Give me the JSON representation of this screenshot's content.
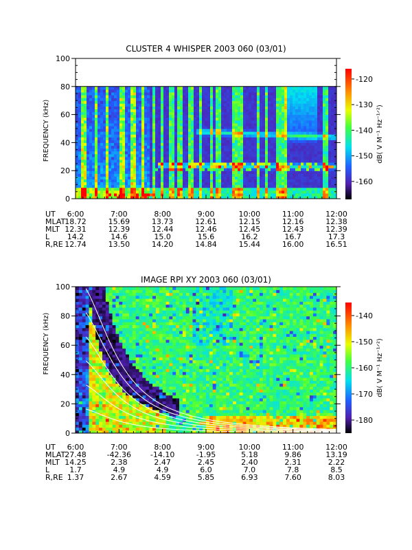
{
  "chart_data": [
    {
      "type": "heatmap",
      "title": "CLUSTER 4 WHISPER 2003 060 (03/01)",
      "ylabel": "FREQUENCY (kHz)",
      "ylim": [
        0,
        100
      ],
      "yticks": [
        "0",
        "20",
        "40",
        "60",
        "80",
        "100"
      ],
      "xlim": [
        "6:00",
        "12:00"
      ],
      "data_top_khz": 80,
      "colorbar": {
        "label": "dB( V M⁻¹ Hz⁻¹ᐟ²)",
        "ticks": [
          "-120",
          "-130",
          "-140",
          "-150",
          "-160"
        ],
        "range": [
          -167,
          -116
        ]
      },
      "ephemeris": {
        "rows": [
          {
            "name": "UT",
            "values": [
              "6:00",
              "7:00",
              "8:00",
              "9:00",
              "10:00",
              "11:00",
              "12:00"
            ]
          },
          {
            "name": "MLAT",
            "values": [
              "18.72",
              "15.69",
              "13.73",
              "12.61",
              "12.15",
              "12.16",
              "12.38"
            ]
          },
          {
            "name": "MLT",
            "values": [
              "12.31",
              "12.39",
              "12.44",
              "12.46",
              "12.45",
              "12.43",
              "12.39"
            ]
          },
          {
            "name": "L",
            "values": [
              "14.2",
              "14.6",
              "15.0",
              "15.6",
              "16.2",
              "16.7",
              "17.3"
            ]
          },
          {
            "name": "R,RE",
            "values": [
              "12.74",
              "13.50",
              "14.20",
              "14.84",
              "15.44",
              "16.00",
              "16.51"
            ]
          }
        ]
      },
      "emission_bands_khz": [
        {
          "name": "upper band",
          "start_hour": 8.8,
          "end_hour": 12.0,
          "freq": [
            48,
            44
          ]
        },
        {
          "name": "lower band",
          "start_hour": 7.9,
          "end_hour": 12.0,
          "freq": [
            24,
            23
          ]
        }
      ],
      "colors": {
        "background": "#3a2aa0",
        "band": "#30c8e8",
        "hot": "#ff3010"
      }
    },
    {
      "type": "heatmap",
      "title": "IMAGE RPI XY 2003 060 (03/01)",
      "ylabel": "FREQUENCY (kHz)",
      "ylim": [
        0,
        100
      ],
      "yticks": [
        "0",
        "20",
        "40",
        "60",
        "80",
        "100"
      ],
      "xlim": [
        "6:00",
        "12:00"
      ],
      "colorbar": {
        "label": "dB( V M⁻¹ Hz⁻¹ᐟ²)",
        "ticks": [
          "-140",
          "-150",
          "-160",
          "-170",
          "-180"
        ],
        "range": [
          -185,
          -135
        ]
      },
      "ephemeris": {
        "rows": [
          {
            "name": "UT",
            "values": [
              "6:00",
              "7:00",
              "8:00",
              "9:00",
              "10:00",
              "11:00",
              "12:00"
            ]
          },
          {
            "name": "MLAT",
            "values": [
              "27.48",
              "-42.36",
              "-14.10",
              "-1.95",
              "5.18",
              "9.86",
              "13.19"
            ]
          },
          {
            "name": "MLT",
            "values": [
              "14.25",
              "2.38",
              "2.47",
              "2.45",
              "2.40",
              "2.31",
              "2.22"
            ]
          },
          {
            "name": "L",
            "values": [
              "1.7",
              "4.9",
              "4.9",
              "6.0",
              "7.0",
              "7.8",
              "8.5"
            ]
          },
          {
            "name": "R,RE",
            "values": [
              "1.37",
              "2.67",
              "4.59",
              "5.85",
              "6.93",
              "7.60",
              "8.03"
            ]
          }
        ]
      },
      "gyro_harmonic_curves": {
        "harmonics": [
          1,
          2,
          3,
          4,
          5,
          6
        ],
        "color": "#ffffff"
      },
      "colors": {
        "background": "#30c8e8",
        "dark": "#000000"
      }
    }
  ]
}
